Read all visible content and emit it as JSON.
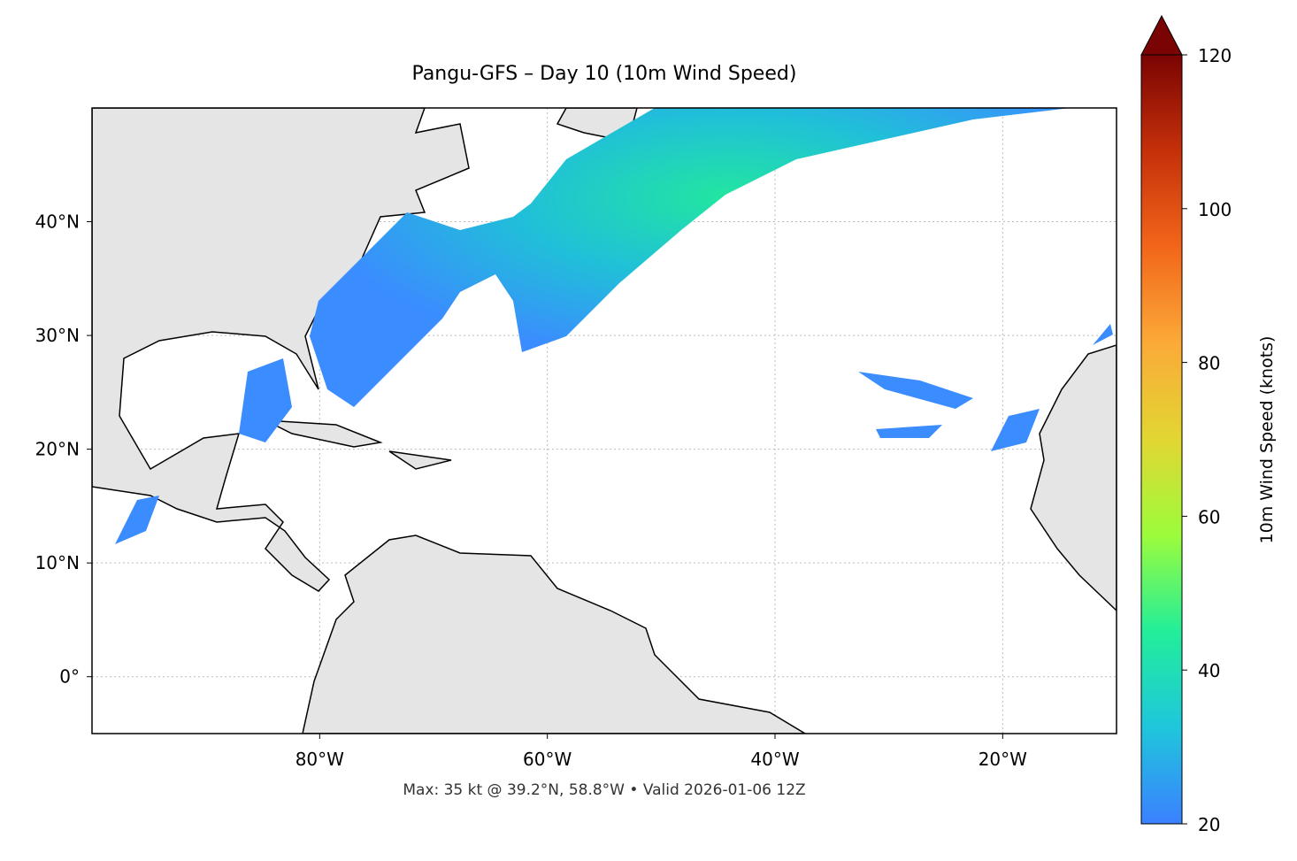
{
  "chart_data": {
    "type": "map",
    "title": "Pangu-GFS – Day 10 (10m Wind Speed)",
    "subtitle": "Max: 35 kt @ 39.2°N, 58.8°W • Valid 2026-01-06 12Z",
    "xlim": [
      -100,
      -10
    ],
    "ylim": [
      -5,
      50
    ],
    "xticks": [
      {
        "value": -80,
        "label": "80°W"
      },
      {
        "value": -60,
        "label": "60°W"
      },
      {
        "value": -40,
        "label": "40°W"
      },
      {
        "value": -20,
        "label": "20°W"
      }
    ],
    "yticks": [
      {
        "value": 0,
        "label": "0°"
      },
      {
        "value": 10,
        "label": "10°N"
      },
      {
        "value": 20,
        "label": "20°N"
      },
      {
        "value": 30,
        "label": "30°N"
      },
      {
        "value": 40,
        "label": "40°N"
      }
    ],
    "grid": true,
    "colorbar": {
      "label": "10m Wind Speed (knots)",
      "lim": [
        20,
        120
      ],
      "ticks": [
        20,
        40,
        60,
        80,
        100,
        120
      ],
      "colors": [
        "#3b80ff",
        "#1fc6dc",
        "#22ee9a",
        "#9cfc3c",
        "#e2d632",
        "#fbaa38",
        "#f2661a",
        "#c5300a",
        "#7a0403"
      ]
    }
  }
}
